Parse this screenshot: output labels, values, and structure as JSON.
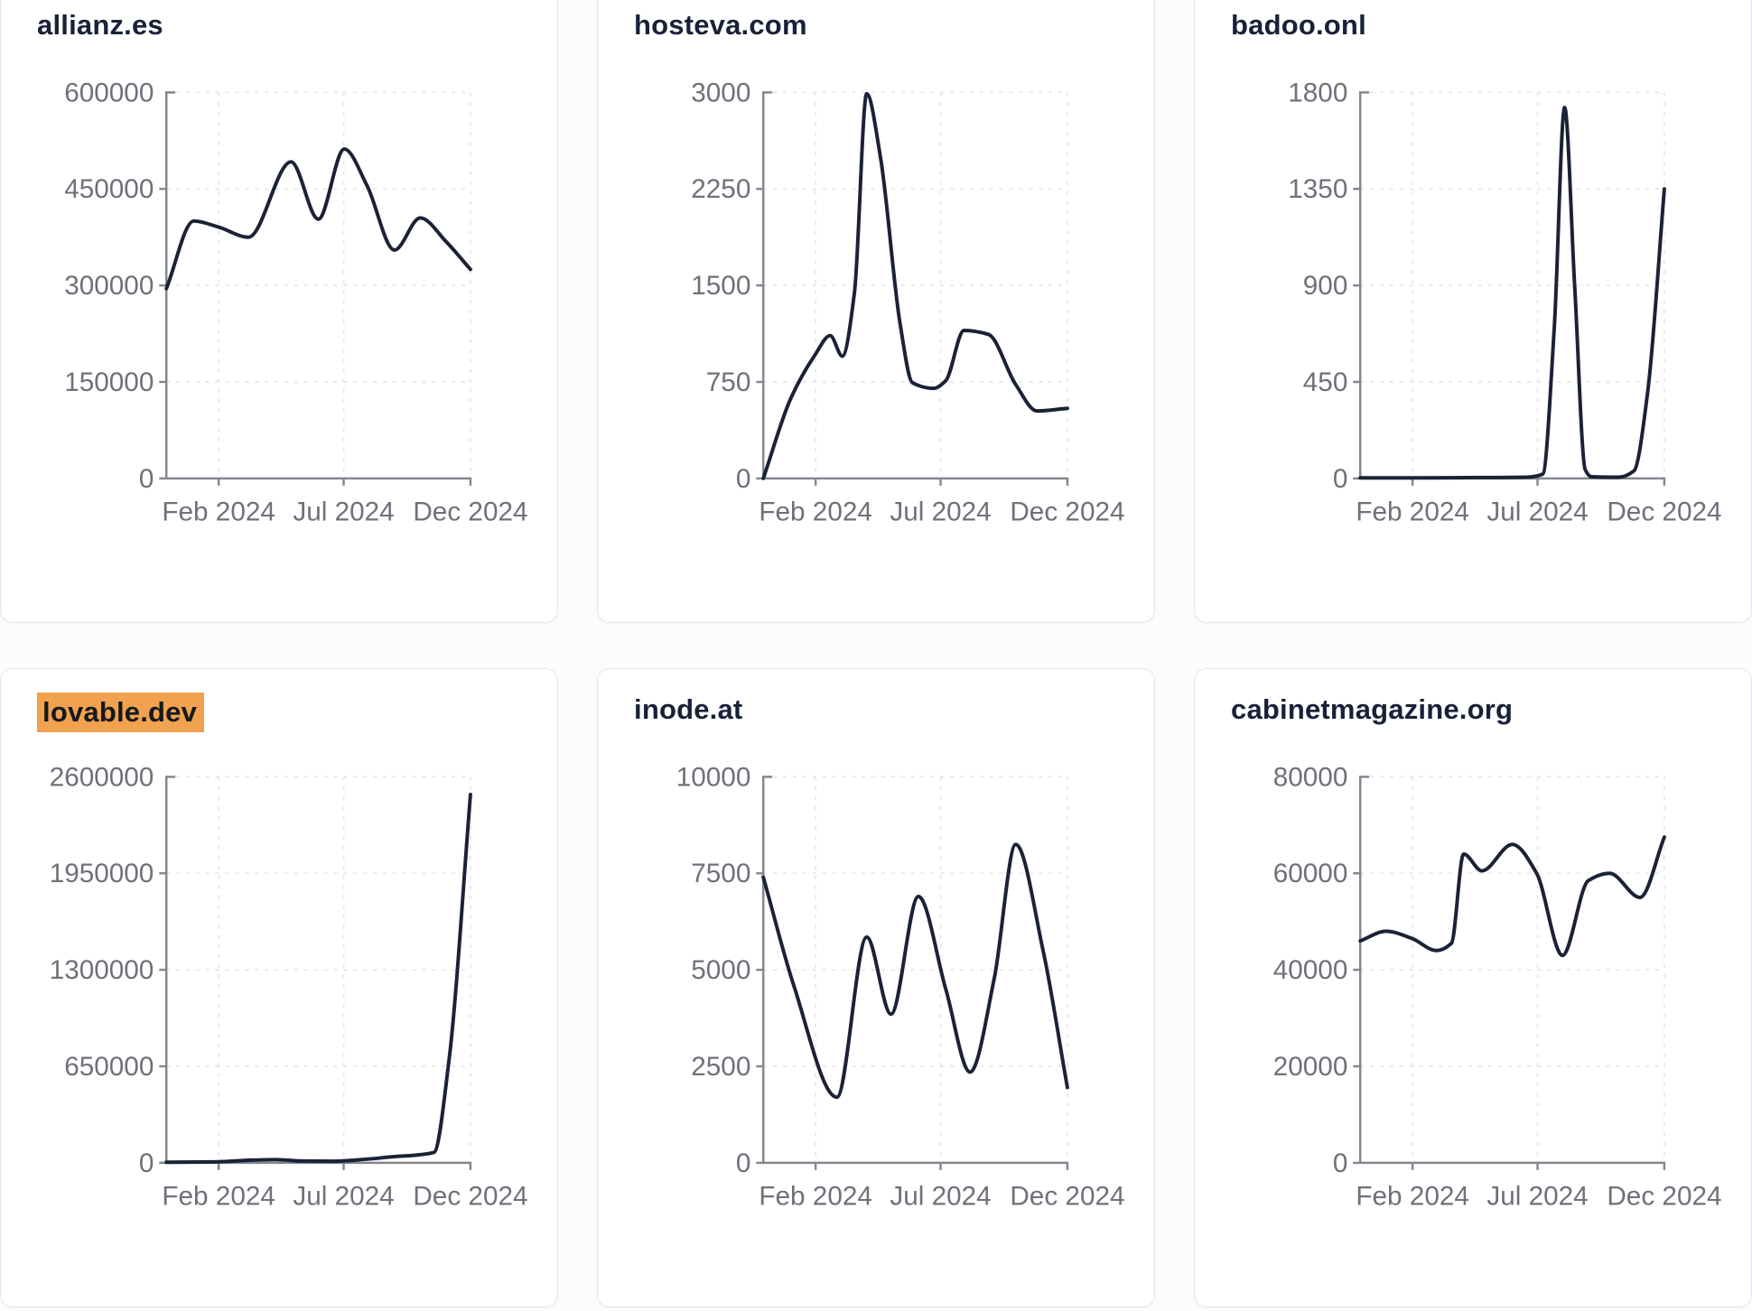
{
  "page": {
    "background": "#fcfcfd",
    "card_background": "#ffffff",
    "card_border": "#e2e6ec"
  },
  "colors": {
    "line": "#1b2236",
    "axis": "#83878f",
    "grid": "#e5e6ea",
    "tick_text": "#6d717a",
    "title_text": "#192139",
    "highlight_bg": "#f0a24f",
    "highlight_text": "#15181d"
  },
  "chart_data": [
    {
      "type": "line",
      "title": "allianz.es",
      "title_highlighted": false,
      "ylim": [
        0,
        600000
      ],
      "yticks": [
        0,
        150000,
        300000,
        450000,
        600000
      ],
      "x_ticks": [
        {
          "label": "Feb 2024",
          "pos": 0.172
        },
        {
          "label": "Jul 2024",
          "pos": 0.583
        },
        {
          "label": "Dec 2024",
          "pos": 1.0
        }
      ],
      "points": [
        [
          0,
          295000
        ],
        [
          0.09,
          400000
        ],
        [
          0.17,
          391000
        ],
        [
          0.27,
          375000
        ],
        [
          0.41,
          492000
        ],
        [
          0.5,
          403000
        ],
        [
          0.585,
          512000
        ],
        [
          0.66,
          455000
        ],
        [
          0.75,
          355000
        ],
        [
          0.835,
          405000
        ],
        [
          0.92,
          368000
        ],
        [
          1,
          325000
        ]
      ]
    },
    {
      "type": "line",
      "title": "hosteva.com",
      "title_highlighted": false,
      "ylim": [
        0,
        3000
      ],
      "yticks": [
        0,
        750,
        1500,
        2250,
        3000
      ],
      "x_ticks": [
        {
          "label": "Feb 2024",
          "pos": 0.172
        },
        {
          "label": "Jul 2024",
          "pos": 0.583
        },
        {
          "label": "Dec 2024",
          "pos": 1.0
        }
      ],
      "points": [
        [
          0,
          0
        ],
        [
          0.09,
          620
        ],
        [
          0.17,
          960
        ],
        [
          0.22,
          1110
        ],
        [
          0.26,
          950
        ],
        [
          0.3,
          1450
        ],
        [
          0.34,
          2990
        ],
        [
          0.385,
          2500
        ],
        [
          0.45,
          1200
        ],
        [
          0.49,
          745
        ],
        [
          0.56,
          700
        ],
        [
          0.6,
          760
        ],
        [
          0.66,
          1150
        ],
        [
          0.74,
          1120
        ],
        [
          0.83,
          730
        ],
        [
          0.9,
          525
        ],
        [
          1,
          545
        ]
      ]
    },
    {
      "type": "line",
      "title": "badoo.onl",
      "title_highlighted": false,
      "ylim": [
        0,
        1800
      ],
      "yticks": [
        0,
        450,
        900,
        1350,
        1800
      ],
      "x_ticks": [
        {
          "label": "Feb 2024",
          "pos": 0.172
        },
        {
          "label": "Jul 2024",
          "pos": 0.583
        },
        {
          "label": "Dec 2024",
          "pos": 1.0
        }
      ],
      "points": [
        [
          0,
          3
        ],
        [
          0.2,
          3
        ],
        [
          0.4,
          4
        ],
        [
          0.55,
          6
        ],
        [
          0.6,
          20
        ],
        [
          0.638,
          700
        ],
        [
          0.672,
          1730
        ],
        [
          0.705,
          900
        ],
        [
          0.74,
          40
        ],
        [
          0.76,
          8
        ],
        [
          0.85,
          6
        ],
        [
          0.9,
          35
        ],
        [
          0.945,
          400
        ],
        [
          1,
          1350
        ]
      ]
    },
    {
      "type": "line",
      "title": "lovable.dev",
      "title_highlighted": true,
      "ylim": [
        0,
        2600000
      ],
      "yticks": [
        0,
        650000,
        1300000,
        1950000,
        2600000
      ],
      "x_ticks": [
        {
          "label": "Feb 2024",
          "pos": 0.172
        },
        {
          "label": "Jul 2024",
          "pos": 0.583
        },
        {
          "label": "Dec 2024",
          "pos": 1.0
        }
      ],
      "points": [
        [
          0,
          4000
        ],
        [
          0.15,
          6000
        ],
        [
          0.28,
          18000
        ],
        [
          0.36,
          22000
        ],
        [
          0.45,
          12000
        ],
        [
          0.55,
          11000
        ],
        [
          0.66,
          25000
        ],
        [
          0.75,
          42000
        ],
        [
          0.82,
          52000
        ],
        [
          0.88,
          70000
        ],
        [
          0.93,
          700000
        ],
        [
          1,
          2480000
        ]
      ]
    },
    {
      "type": "line",
      "title": "inode.at",
      "title_highlighted": false,
      "ylim": [
        0,
        10000
      ],
      "yticks": [
        0,
        2500,
        5000,
        7500,
        10000
      ],
      "x_ticks": [
        {
          "label": "Feb 2024",
          "pos": 0.172
        },
        {
          "label": "Jul 2024",
          "pos": 0.583
        },
        {
          "label": "Dec 2024",
          "pos": 1.0
        }
      ],
      "points": [
        [
          0,
          7400
        ],
        [
          0.1,
          4600
        ],
        [
          0.242,
          1700
        ],
        [
          0.34,
          5850
        ],
        [
          0.42,
          3850
        ],
        [
          0.51,
          6900
        ],
        [
          0.6,
          4500
        ],
        [
          0.68,
          2350
        ],
        [
          0.76,
          4800
        ],
        [
          0.83,
          8250
        ],
        [
          0.92,
          5500
        ],
        [
          1,
          1950
        ]
      ]
    },
    {
      "type": "line",
      "title": "cabinetmagazine.org",
      "title_highlighted": false,
      "ylim": [
        0,
        80000
      ],
      "yticks": [
        0,
        20000,
        40000,
        60000,
        80000
      ],
      "x_ticks": [
        {
          "label": "Feb 2024",
          "pos": 0.172
        },
        {
          "label": "Jul 2024",
          "pos": 0.583
        },
        {
          "label": "Dec 2024",
          "pos": 1.0
        }
      ],
      "points": [
        [
          0,
          46000
        ],
        [
          0.085,
          48000
        ],
        [
          0.17,
          46500
        ],
        [
          0.25,
          44000
        ],
        [
          0.3,
          45500
        ],
        [
          0.34,
          64000
        ],
        [
          0.4,
          60500
        ],
        [
          0.5,
          66000
        ],
        [
          0.58,
          60000
        ],
        [
          0.665,
          43000
        ],
        [
          0.75,
          58500
        ],
        [
          0.82,
          60000
        ],
        [
          0.92,
          55000
        ],
        [
          1,
          67500
        ]
      ]
    }
  ]
}
